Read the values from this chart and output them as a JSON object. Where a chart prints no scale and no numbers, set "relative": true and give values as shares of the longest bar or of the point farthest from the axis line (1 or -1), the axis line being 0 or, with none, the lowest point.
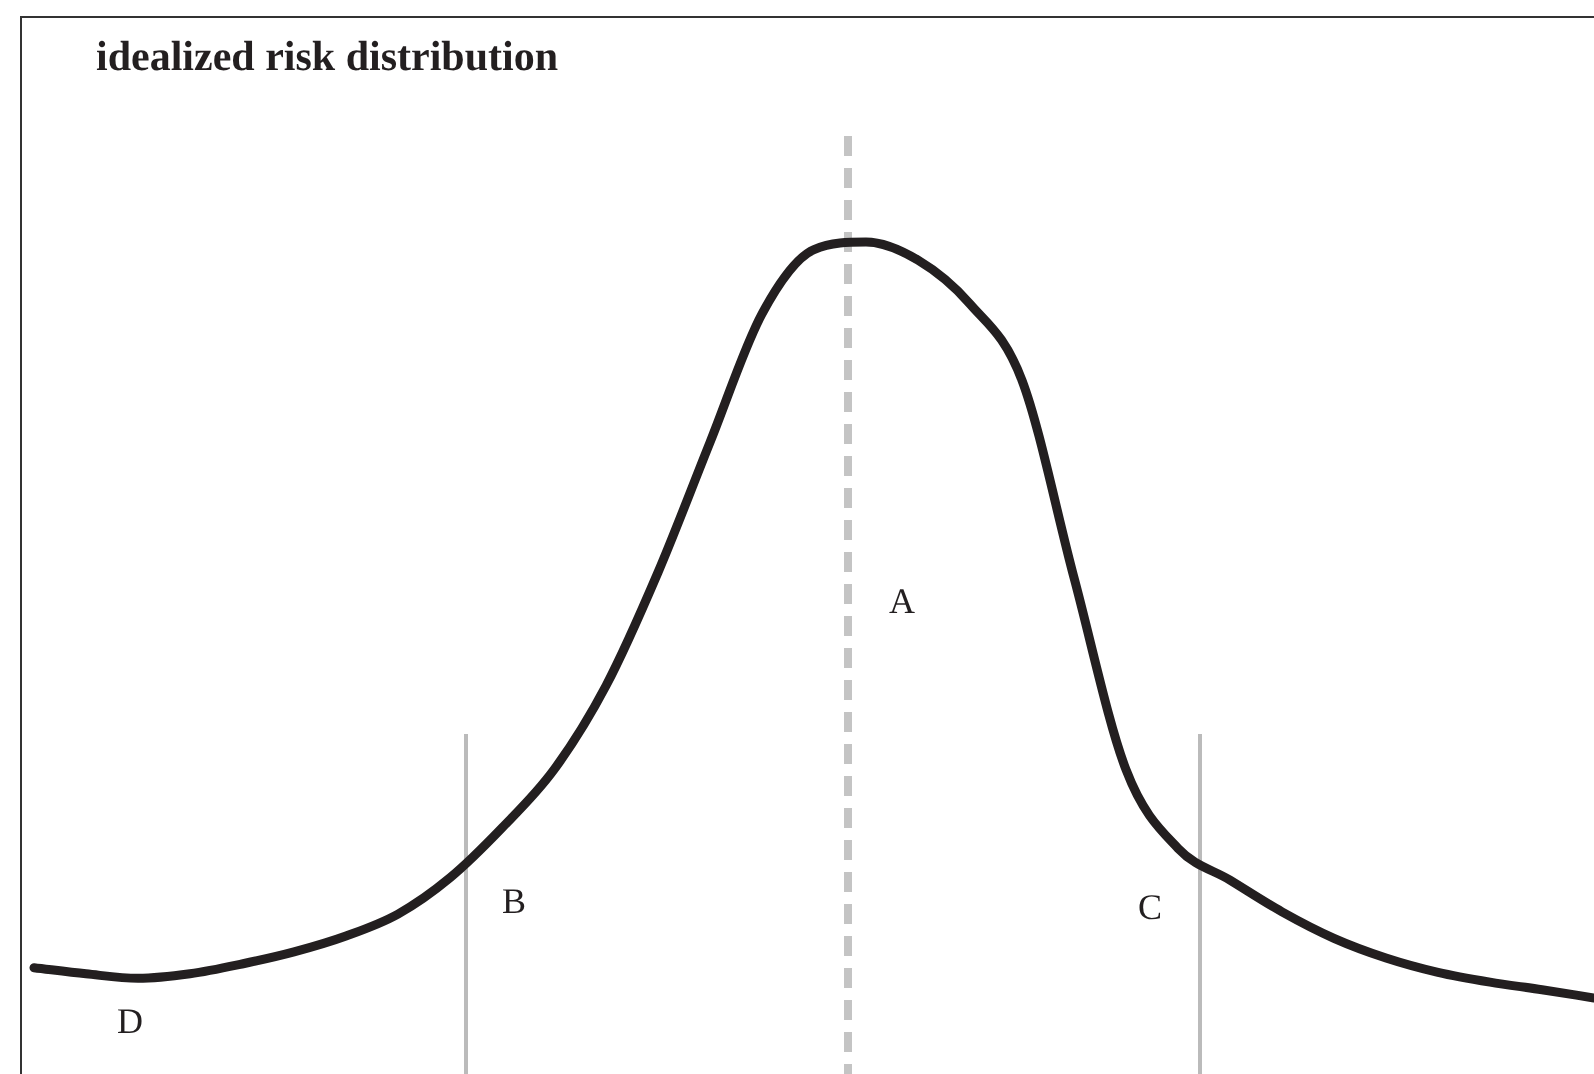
{
  "chart_data": {
    "type": "line",
    "title": "idealized risk distribution",
    "relative": true,
    "categories": [
      null,
      null,
      null,
      null,
      null,
      null,
      null,
      null,
      null,
      null,
      null,
      null,
      null,
      null,
      null,
      null,
      null,
      null,
      null,
      null,
      null,
      null,
      null,
      null,
      null,
      null,
      null,
      null,
      null,
      null,
      null
    ],
    "series": [
      {
        "color": "#231f20",
        "values": [
          0.04,
          0.032,
          0.026,
          0.032,
          0.045,
          0.061,
          0.082,
          0.111,
          0.159,
          0.225,
          0.302,
          0.413,
          0.563,
          0.735,
          0.905,
          0.99,
          1,
          0.976,
          0.918,
          0.817,
          0.556,
          0.302,
          0.198,
          0.156,
          0.114,
          0.079,
          0.053,
          0.034,
          0.021,
          0.011,
          0
        ]
      }
    ],
    "annotations": [
      "A",
      "B",
      "C",
      "D"
    ],
    "grid": false,
    "legend": false,
    "tick_labels": false,
    "marker": "none",
    "line_style": "solid"
  }
}
